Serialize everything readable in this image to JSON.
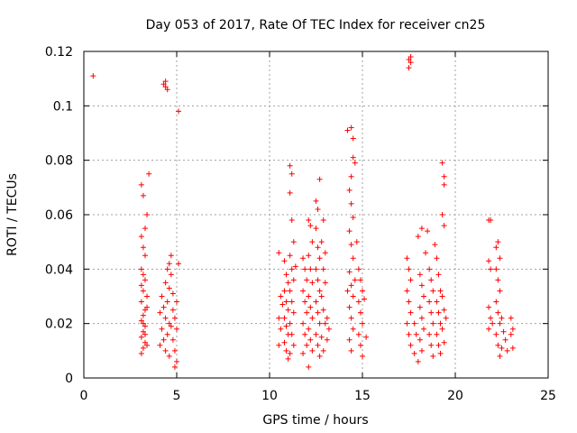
{
  "chart_data": {
    "type": "scatter",
    "title": "Day 053 of 2017, Rate Of TEC Index for receiver cn25",
    "xlabel": "GPS time / hours",
    "ylabel": "ROTI / TECUs",
    "xlim": [
      0,
      25
    ],
    "ylim": [
      0,
      0.12
    ],
    "xticks": [
      0,
      5,
      10,
      15,
      20,
      25
    ],
    "xtick_labels": [
      "0",
      "5",
      "10",
      "15",
      "20",
      "25"
    ],
    "yticks": [
      0,
      0.02,
      0.04,
      0.06,
      0.08,
      0.1,
      0.12
    ],
    "ytick_labels": [
      "0",
      "0.02",
      "0.04",
      "0.06",
      "0.08",
      "0.1",
      "0.12"
    ],
    "grid": true,
    "marker": "+",
    "color": "#ff0000",
    "series": [
      {
        "name": "ROTI",
        "points": [
          [
            0.5,
            0.111
          ],
          [
            3.1,
            0.071
          ],
          [
            3.2,
            0.067
          ],
          [
            3.5,
            0.075
          ],
          [
            3.4,
            0.06
          ],
          [
            3.3,
            0.055
          ],
          [
            3.1,
            0.052
          ],
          [
            3.2,
            0.048
          ],
          [
            3.3,
            0.045
          ],
          [
            3.1,
            0.04
          ],
          [
            3.2,
            0.038
          ],
          [
            3.3,
            0.036
          ],
          [
            3.1,
            0.034
          ],
          [
            3.2,
            0.032
          ],
          [
            3.4,
            0.03
          ],
          [
            3.1,
            0.028
          ],
          [
            3.3,
            0.025
          ],
          [
            3.2,
            0.023
          ],
          [
            3.1,
            0.021
          ],
          [
            3.3,
            0.019
          ],
          [
            3.2,
            0.017
          ],
          [
            3.1,
            0.015
          ],
          [
            3.3,
            0.013
          ],
          [
            3.2,
            0.011
          ],
          [
            3.1,
            0.009
          ],
          [
            3.4,
            0.012
          ],
          [
            3.3,
            0.016
          ],
          [
            3.2,
            0.02
          ],
          [
            3.4,
            0.026
          ],
          [
            4.3,
            0.108
          ],
          [
            4.4,
            0.107
          ],
          [
            4.5,
            0.106
          ],
          [
            4.4,
            0.109
          ],
          [
            5.1,
            0.098
          ],
          [
            4.7,
            0.045
          ],
          [
            4.6,
            0.042
          ],
          [
            4.5,
            0.04
          ],
          [
            4.7,
            0.038
          ],
          [
            4.4,
            0.035
          ],
          [
            4.6,
            0.033
          ],
          [
            4.2,
            0.03
          ],
          [
            4.5,
            0.028
          ],
          [
            4.3,
            0.026
          ],
          [
            4.1,
            0.024
          ],
          [
            4.4,
            0.022
          ],
          [
            4.6,
            0.02
          ],
          [
            4.2,
            0.018
          ],
          [
            4.5,
            0.016
          ],
          [
            4.3,
            0.014
          ],
          [
            4.1,
            0.012
          ],
          [
            4.4,
            0.01
          ],
          [
            4.6,
            0.008
          ],
          [
            4.8,
            0.025
          ],
          [
            4.9,
            0.022
          ],
          [
            5.0,
            0.018
          ],
          [
            4.8,
            0.014
          ],
          [
            4.9,
            0.01
          ],
          [
            5.0,
            0.006
          ],
          [
            4.9,
            0.004
          ],
          [
            5.0,
            0.028
          ],
          [
            5.1,
            0.042
          ],
          [
            4.7,
            0.019
          ],
          [
            4.8,
            0.031
          ],
          [
            10.5,
            0.046
          ],
          [
            10.6,
            0.03
          ],
          [
            10.5,
            0.022
          ],
          [
            10.6,
            0.018
          ],
          [
            10.5,
            0.012
          ],
          [
            10.8,
            0.043
          ],
          [
            10.9,
            0.038
          ],
          [
            11.0,
            0.035
          ],
          [
            10.8,
            0.032
          ],
          [
            10.9,
            0.028
          ],
          [
            11.0,
            0.025
          ],
          [
            10.8,
            0.022
          ],
          [
            10.9,
            0.019
          ],
          [
            11.0,
            0.016
          ],
          [
            10.8,
            0.013
          ],
          [
            10.9,
            0.01
          ],
          [
            11.0,
            0.007
          ],
          [
            11.1,
            0.078
          ],
          [
            11.2,
            0.075
          ],
          [
            11.1,
            0.068
          ],
          [
            11.2,
            0.058
          ],
          [
            11.3,
            0.05
          ],
          [
            11.1,
            0.045
          ],
          [
            11.2,
            0.04
          ],
          [
            11.3,
            0.036
          ],
          [
            11.1,
            0.032
          ],
          [
            11.2,
            0.028
          ],
          [
            11.3,
            0.024
          ],
          [
            11.1,
            0.02
          ],
          [
            11.2,
            0.016
          ],
          [
            11.3,
            0.012
          ],
          [
            11.1,
            0.009
          ],
          [
            10.7,
            0.027
          ],
          [
            11.4,
            0.041
          ],
          [
            11.8,
            0.044
          ],
          [
            11.9,
            0.04
          ],
          [
            12.0,
            0.036
          ],
          [
            11.8,
            0.032
          ],
          [
            11.9,
            0.028
          ],
          [
            12.0,
            0.024
          ],
          [
            11.8,
            0.02
          ],
          [
            11.9,
            0.016
          ],
          [
            12.0,
            0.012
          ],
          [
            11.8,
            0.009
          ],
          [
            12.1,
            0.004
          ],
          [
            12.1,
            0.058
          ],
          [
            12.2,
            0.056
          ],
          [
            12.3,
            0.05
          ],
          [
            12.1,
            0.045
          ],
          [
            12.2,
            0.04
          ],
          [
            12.3,
            0.035
          ],
          [
            12.1,
            0.03
          ],
          [
            12.2,
            0.026
          ],
          [
            12.3,
            0.022
          ],
          [
            12.1,
            0.018
          ],
          [
            12.2,
            0.014
          ],
          [
            12.3,
            0.01
          ],
          [
            12.5,
            0.065
          ],
          [
            12.6,
            0.062
          ],
          [
            12.7,
            0.073
          ],
          [
            12.5,
            0.055
          ],
          [
            12.6,
            0.048
          ],
          [
            12.7,
            0.044
          ],
          [
            12.5,
            0.04
          ],
          [
            12.6,
            0.036
          ],
          [
            12.7,
            0.032
          ],
          [
            12.5,
            0.028
          ],
          [
            12.6,
            0.024
          ],
          [
            12.7,
            0.02
          ],
          [
            12.5,
            0.016
          ],
          [
            12.6,
            0.012
          ],
          [
            12.7,
            0.008
          ],
          [
            12.9,
            0.058
          ],
          [
            12.8,
            0.05
          ],
          [
            13.0,
            0.046
          ],
          [
            12.9,
            0.04
          ],
          [
            13.0,
            0.035
          ],
          [
            12.8,
            0.03
          ],
          [
            12.9,
            0.025
          ],
          [
            13.0,
            0.02
          ],
          [
            12.8,
            0.015
          ],
          [
            12.9,
            0.01
          ],
          [
            13.1,
            0.022
          ],
          [
            13.2,
            0.018
          ],
          [
            13.1,
            0.014
          ],
          [
            14.2,
            0.091
          ],
          [
            14.4,
            0.092
          ],
          [
            14.5,
            0.088
          ],
          [
            14.5,
            0.081
          ],
          [
            14.6,
            0.079
          ],
          [
            14.4,
            0.074
          ],
          [
            14.3,
            0.069
          ],
          [
            14.4,
            0.064
          ],
          [
            14.5,
            0.059
          ],
          [
            14.3,
            0.054
          ],
          [
            14.4,
            0.049
          ],
          [
            14.5,
            0.044
          ],
          [
            14.3,
            0.039
          ],
          [
            14.4,
            0.034
          ],
          [
            14.5,
            0.03
          ],
          [
            14.3,
            0.026
          ],
          [
            14.4,
            0.022
          ],
          [
            14.5,
            0.018
          ],
          [
            14.3,
            0.014
          ],
          [
            14.4,
            0.01
          ],
          [
            14.6,
            0.036
          ],
          [
            14.2,
            0.032
          ],
          [
            14.7,
            0.05
          ],
          [
            14.8,
            0.04
          ],
          [
            14.9,
            0.036
          ],
          [
            15.0,
            0.032
          ],
          [
            14.8,
            0.028
          ],
          [
            14.9,
            0.024
          ],
          [
            15.0,
            0.02
          ],
          [
            14.8,
            0.016
          ],
          [
            14.9,
            0.012
          ],
          [
            15.0,
            0.008
          ],
          [
            15.1,
            0.029
          ],
          [
            15.2,
            0.015
          ],
          [
            17.5,
            0.117
          ],
          [
            17.6,
            0.116
          ],
          [
            17.5,
            0.114
          ],
          [
            17.6,
            0.118
          ],
          [
            17.4,
            0.044
          ],
          [
            17.5,
            0.04
          ],
          [
            17.6,
            0.036
          ],
          [
            17.4,
            0.032
          ],
          [
            17.5,
            0.028
          ],
          [
            17.6,
            0.024
          ],
          [
            17.4,
            0.02
          ],
          [
            17.5,
            0.016
          ],
          [
            17.6,
            0.012
          ],
          [
            17.8,
            0.02
          ],
          [
            17.9,
            0.016
          ],
          [
            17.8,
            0.009
          ],
          [
            18.0,
            0.052
          ],
          [
            18.2,
            0.055
          ],
          [
            18.1,
            0.038
          ],
          [
            18.2,
            0.034
          ],
          [
            18.3,
            0.03
          ],
          [
            18.1,
            0.026
          ],
          [
            18.2,
            0.022
          ],
          [
            18.3,
            0.018
          ],
          [
            18.1,
            0.014
          ],
          [
            18.2,
            0.01
          ],
          [
            18.0,
            0.006
          ],
          [
            18.4,
            0.046
          ],
          [
            18.6,
            0.04
          ],
          [
            18.7,
            0.036
          ],
          [
            18.8,
            0.032
          ],
          [
            18.6,
            0.028
          ],
          [
            18.7,
            0.024
          ],
          [
            18.8,
            0.02
          ],
          [
            18.6,
            0.016
          ],
          [
            18.7,
            0.012
          ],
          [
            18.8,
            0.008
          ],
          [
            18.9,
            0.049
          ],
          [
            19.0,
            0.044
          ],
          [
            19.1,
            0.038
          ],
          [
            19.2,
            0.032
          ],
          [
            19.0,
            0.028
          ],
          [
            19.1,
            0.024
          ],
          [
            19.2,
            0.02
          ],
          [
            19.0,
            0.016
          ],
          [
            19.1,
            0.012
          ],
          [
            19.2,
            0.009
          ],
          [
            19.3,
            0.079
          ],
          [
            19.4,
            0.074
          ],
          [
            19.4,
            0.071
          ],
          [
            19.3,
            0.06
          ],
          [
            19.4,
            0.056
          ],
          [
            19.3,
            0.03
          ],
          [
            19.4,
            0.025
          ],
          [
            19.3,
            0.018
          ],
          [
            19.4,
            0.013
          ],
          [
            19.5,
            0.022
          ],
          [
            18.5,
            0.054
          ],
          [
            21.8,
            0.058
          ],
          [
            21.9,
            0.058
          ],
          [
            21.8,
            0.043
          ],
          [
            21.9,
            0.04
          ],
          [
            21.8,
            0.026
          ],
          [
            21.9,
            0.022
          ],
          [
            21.8,
            0.018
          ],
          [
            22.0,
            0.02
          ],
          [
            22.2,
            0.048
          ],
          [
            22.3,
            0.05
          ],
          [
            22.4,
            0.044
          ],
          [
            22.2,
            0.04
          ],
          [
            22.3,
            0.036
          ],
          [
            22.4,
            0.032
          ],
          [
            22.2,
            0.028
          ],
          [
            22.3,
            0.024
          ],
          [
            22.4,
            0.02
          ],
          [
            22.2,
            0.016
          ],
          [
            22.3,
            0.012
          ],
          [
            22.4,
            0.008
          ],
          [
            22.5,
            0.022
          ],
          [
            22.6,
            0.017
          ],
          [
            22.7,
            0.014
          ],
          [
            22.5,
            0.011
          ],
          [
            22.8,
            0.01
          ],
          [
            23.0,
            0.022
          ],
          [
            23.1,
            0.018
          ],
          [
            23.0,
            0.016
          ],
          [
            23.1,
            0.011
          ]
        ]
      }
    ]
  }
}
